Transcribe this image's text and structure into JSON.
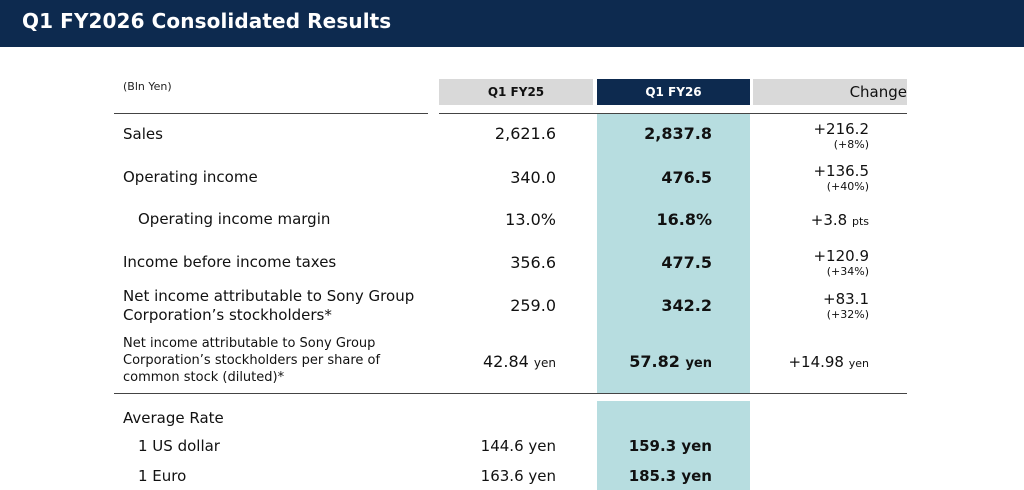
{
  "title": "Q1 FY2026 Consolidated Results",
  "unit": "(Bln Yen)",
  "columns": {
    "fy25": "Q1 FY25",
    "fy26": "Q1 FY26",
    "change": "Change"
  },
  "rows": [
    {
      "label": "Sales",
      "fy25": "2,621.6",
      "fy26": "2,837.8",
      "change": "+216.2",
      "pct": "(+8%)"
    },
    {
      "label": "Operating income",
      "fy25": "340.0",
      "fy26": "476.5",
      "change": "+136.5",
      "pct": "(+40%)"
    },
    {
      "label": "Operating income margin",
      "fy25": "13.0%",
      "fy26": "16.8%",
      "change": "+3.8",
      "change_unit": "pts"
    },
    {
      "label": "Income before income taxes",
      "fy25": "356.6",
      "fy26": "477.5",
      "change": "+120.9",
      "pct": "(+34%)"
    },
    {
      "label_line1": "Net income attributable to Sony Group",
      "label_line2": "Corporation’s stockholders*",
      "fy25": "259.0",
      "fy26": "342.2",
      "change": "+83.1",
      "pct": "(+32%)"
    },
    {
      "label_line1": "Net income attributable to Sony Group",
      "label_line2": "Corporation’s stockholders per share of",
      "label_line3": "common stock (diluted)*",
      "fy25": "42.84",
      "fy26": "57.82",
      "change": "+14.98",
      "unit": "yen"
    }
  ],
  "average_rate": {
    "heading": "Average Rate",
    "items": [
      {
        "label": "1 US dollar",
        "fy25": "144.6 yen",
        "fy26": "159.3 yen"
      },
      {
        "label": "1 Euro",
        "fy25": "163.6 yen",
        "fy26": "185.3 yen"
      }
    ]
  },
  "colors": {
    "banner": "#0d2a4f",
    "highlight": "#b7dde0",
    "header_gray": "#d9d9d9"
  }
}
